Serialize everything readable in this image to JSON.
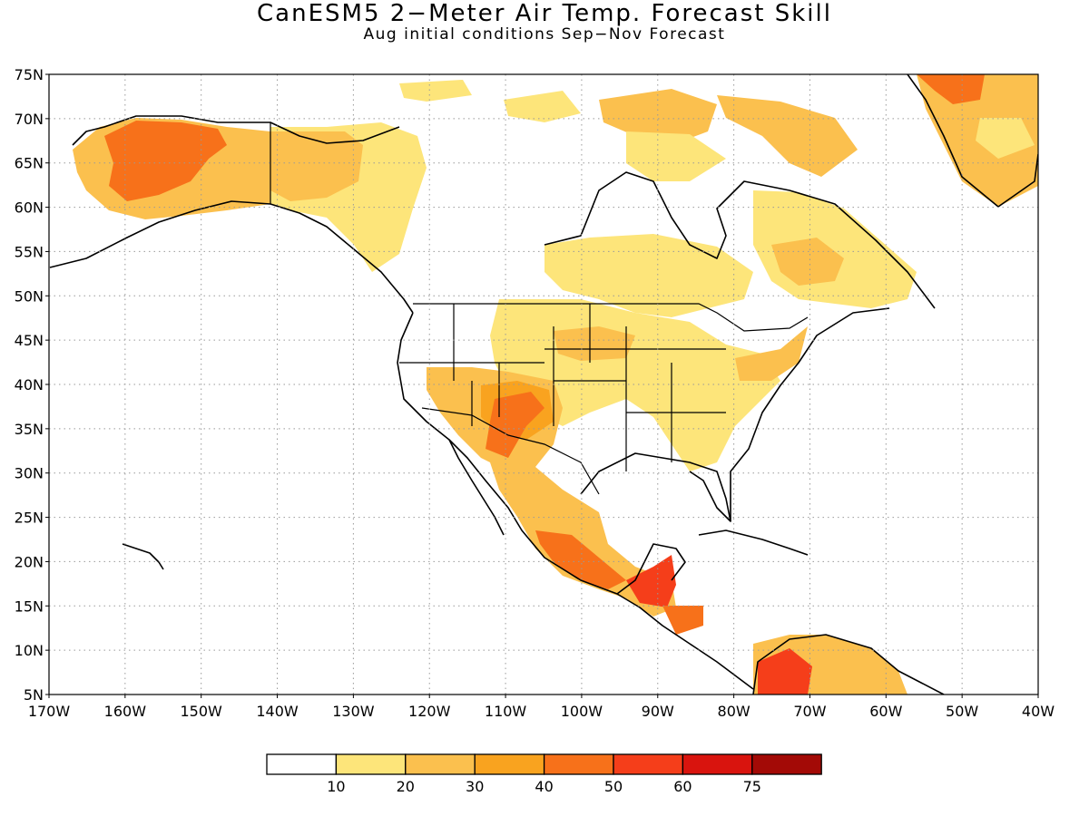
{
  "title": "CanESM5 2−Meter Air Temp. Forecast Skill",
  "subtitle": "Aug initial conditions  Sep−Nov Forecast",
  "map": {
    "lon_range": [
      -170,
      -40
    ],
    "lat_range": [
      5,
      75
    ],
    "lat_ticks": [
      "75N",
      "70N",
      "65N",
      "60N",
      "55N",
      "50N",
      "45N",
      "40N",
      "35N",
      "30N",
      "25N",
      "20N",
      "15N",
      "10N",
      "5N"
    ],
    "lon_ticks": [
      "170W",
      "160W",
      "150W",
      "140W",
      "130W",
      "120W",
      "110W",
      "100W",
      "90W",
      "80W",
      "70W",
      "60W",
      "50W",
      "40W"
    ],
    "grid": "dotted"
  },
  "legend": {
    "labels": [
      "10",
      "20",
      "30",
      "40",
      "50",
      "60",
      "75"
    ],
    "colors": [
      "#ffffff",
      "#fde57a",
      "#fbc04e",
      "#f9a31f",
      "#f7711a",
      "#f53e1a",
      "#d9140e",
      "#a30a06"
    ]
  },
  "colors": {
    "c10": "#fde57a",
    "c20": "#fbc04e",
    "c30": "#f9a31f",
    "c40": "#f7711a",
    "c50": "#f53e1a",
    "c60": "#d9140e",
    "c75": "#a30a06"
  }
}
